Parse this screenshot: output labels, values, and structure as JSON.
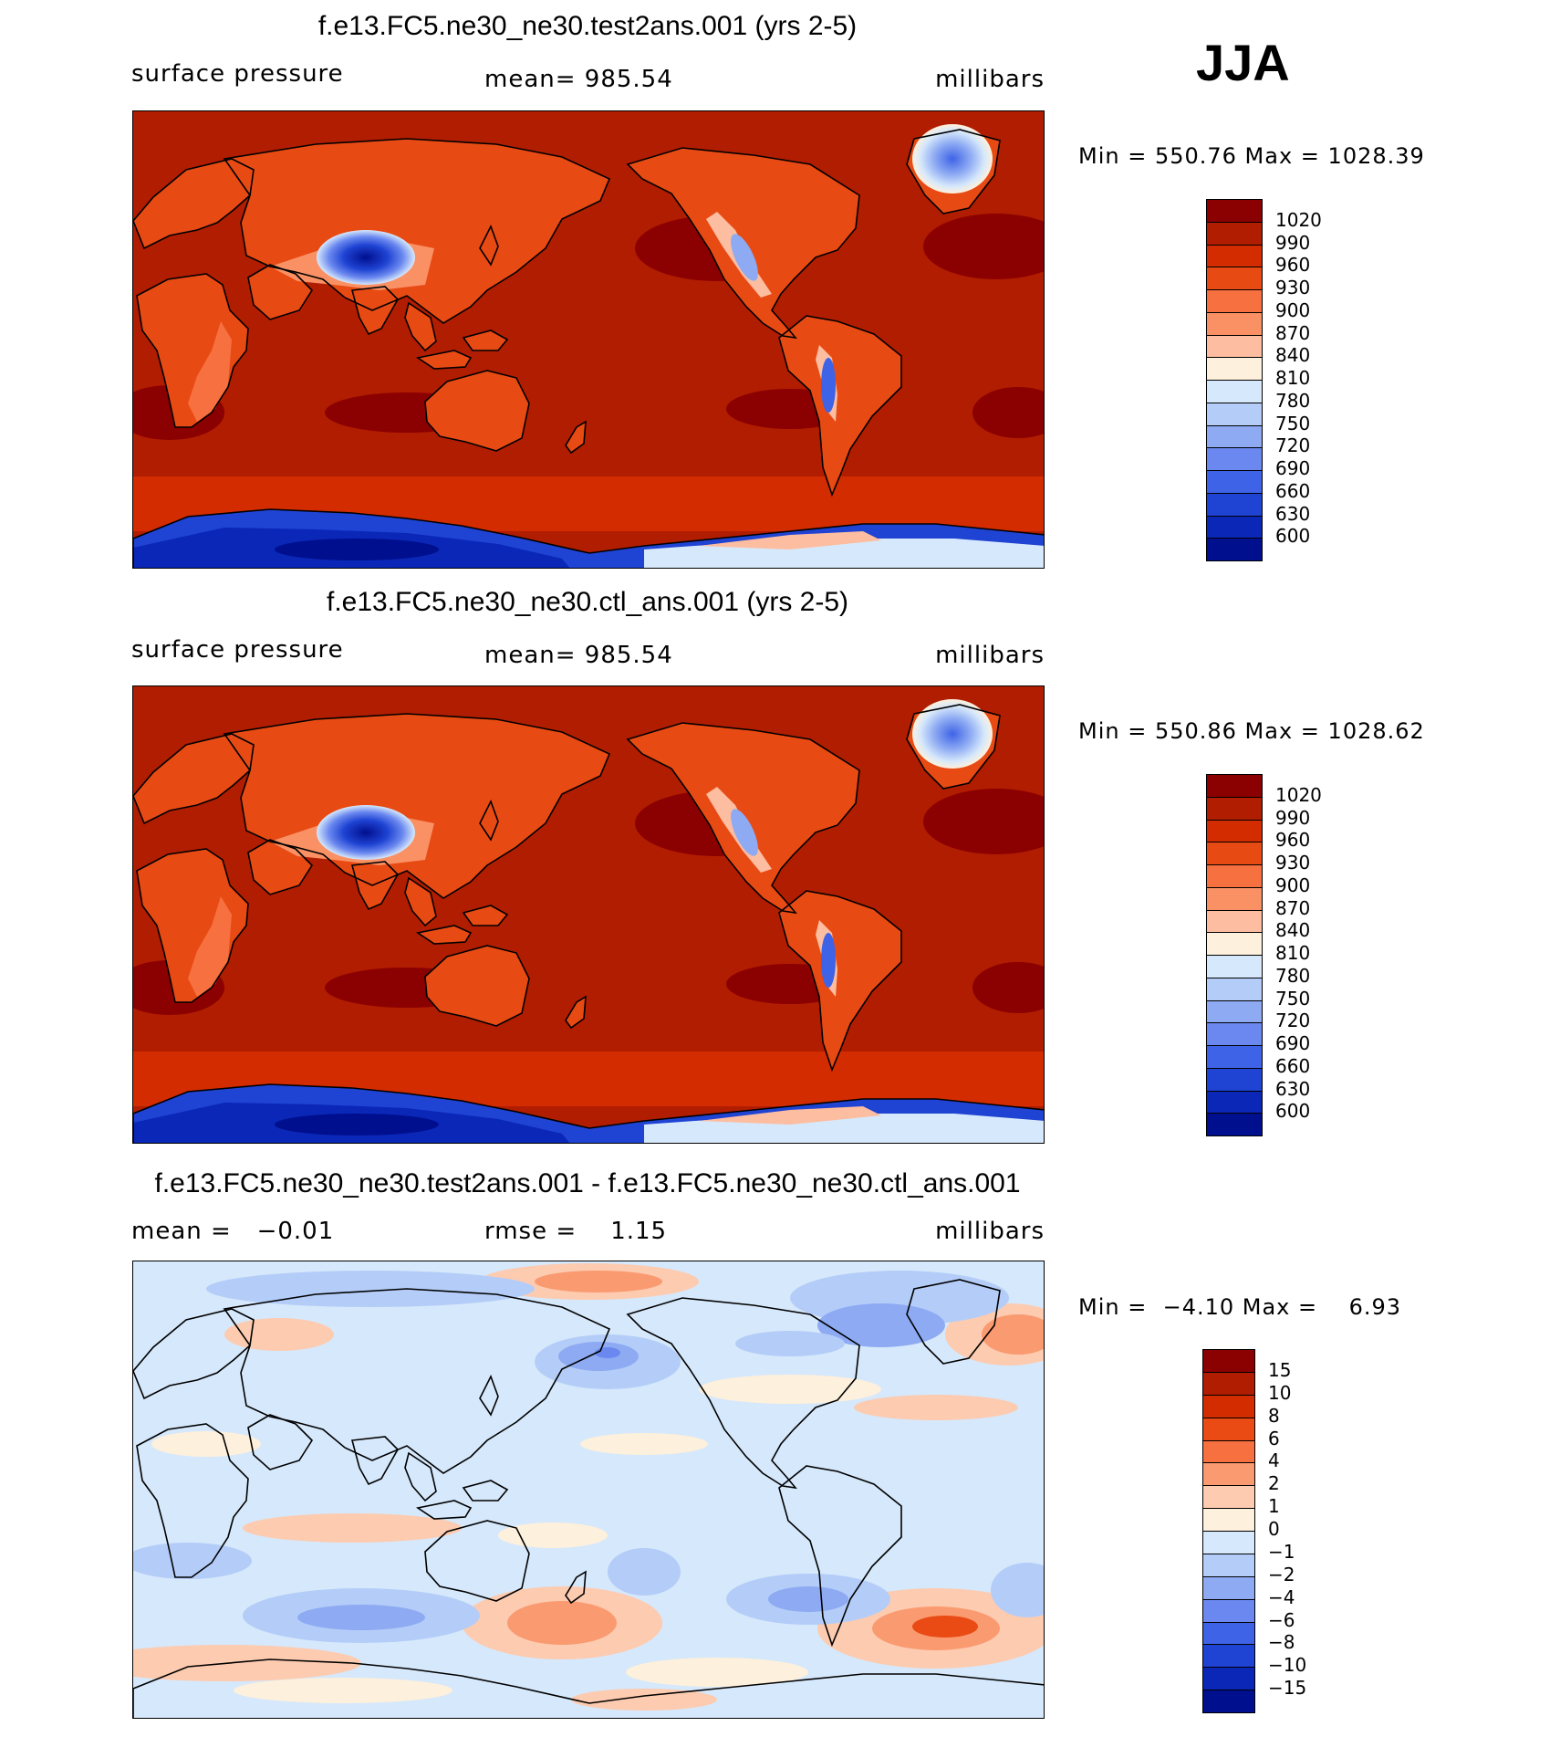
{
  "season": "JJA",
  "panels": [
    {
      "id": "test",
      "title": "f.e13.FC5.ne30_ne30.test2ans.001 (yrs 2-5)",
      "left_label": "surface pressure",
      "center_label": "mean= 985.54",
      "right_label": "millibars",
      "minmax": "Min = 550.76 Max = 1028.39",
      "map_kind": "abs",
      "colorbar": {
        "labels": [
          "1020",
          "990",
          "960",
          "930",
          "900",
          "870",
          "840",
          "810",
          "780",
          "750",
          "720",
          "690",
          "660",
          "630",
          "600"
        ],
        "colors": [
          "#8b0000",
          "#b11d00",
          "#d22c00",
          "#e84a14",
          "#f7703f",
          "#fa9165",
          "#fdbda0",
          "#fdf0dc",
          "#d6e8fb",
          "#b4cdf8",
          "#8daaf3",
          "#6a88ef",
          "#3f63e6",
          "#1f43d3",
          "#0a27b8",
          "#000f8e"
        ]
      }
    },
    {
      "id": "ctl",
      "title": "f.e13.FC5.ne30_ne30.ctl_ans.001 (yrs 2-5)",
      "left_label": "surface pressure",
      "center_label": "mean= 985.54",
      "right_label": "millibars",
      "minmax": "Min = 550.86 Max = 1028.62",
      "map_kind": "abs",
      "colorbar": {
        "labels": [
          "1020",
          "990",
          "960",
          "930",
          "900",
          "870",
          "840",
          "810",
          "780",
          "750",
          "720",
          "690",
          "660",
          "630",
          "600"
        ],
        "colors": [
          "#8b0000",
          "#b11d00",
          "#d22c00",
          "#e84a14",
          "#f7703f",
          "#fa9165",
          "#fdbda0",
          "#fdf0dc",
          "#d6e8fb",
          "#b4cdf8",
          "#8daaf3",
          "#6a88ef",
          "#3f63e6",
          "#1f43d3",
          "#0a27b8",
          "#000f8e"
        ]
      }
    },
    {
      "id": "diff",
      "title": "f.e13.FC5.ne30_ne30.test2ans.001 - f.e13.FC5.ne30_ne30.ctl_ans.001",
      "left_label": "mean =   −0.01",
      "center_label": "rmse =    1.15",
      "right_label": "millibars",
      "minmax": "Min =  −4.10 Max =    6.93",
      "map_kind": "diff",
      "colorbar": {
        "labels": [
          "15",
          "10",
          "8",
          "6",
          "4",
          "2",
          "1",
          "0",
          "−1",
          "−2",
          "−4",
          "−6",
          "−8",
          "−10",
          "−15"
        ],
        "colors": [
          "#8b0000",
          "#b11d00",
          "#d22c00",
          "#ea4a14",
          "#f7703f",
          "#fa9a70",
          "#fdcbb0",
          "#fdf0dc",
          "#d6e8fb",
          "#b4cdf8",
          "#8daaf3",
          "#6a88ef",
          "#3f63e6",
          "#1f43d3",
          "#0a27b8",
          "#000f8e"
        ]
      }
    }
  ]
}
